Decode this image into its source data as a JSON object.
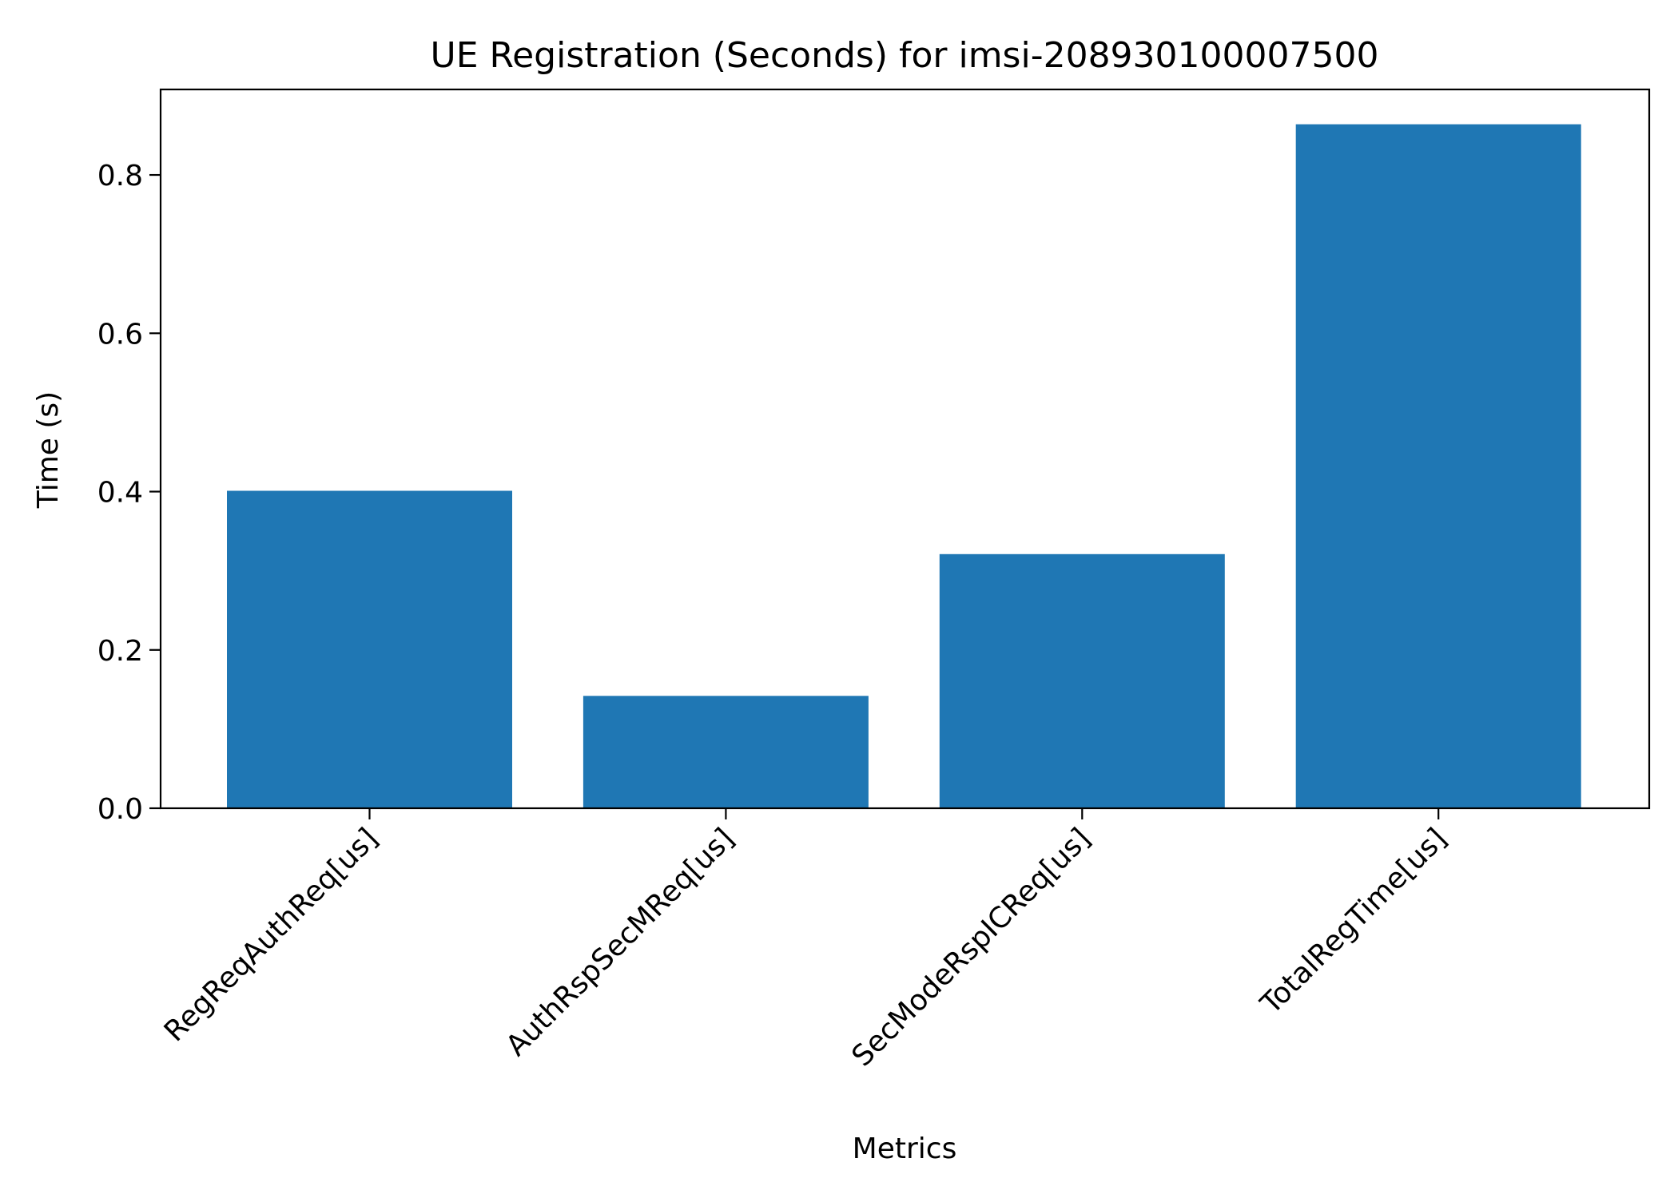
{
  "chart_data": {
    "type": "bar",
    "title": "UE Registration (Seconds) for imsi-208930100007500",
    "xlabel": "Metrics",
    "ylabel": "Time (s)",
    "categories": [
      "RegReqAuthReq[us]",
      "AuthRspSecMReq[us]",
      "SecModeRspICReq[us]",
      "TotalRegTime[us]"
    ],
    "values": [
      0.401,
      0.142,
      0.321,
      0.864
    ],
    "ylim": [
      0,
      0.908
    ],
    "yticks": [
      0.0,
      0.2,
      0.4,
      0.6,
      0.8
    ],
    "ytick_labels": [
      "0.0",
      "0.2",
      "0.4",
      "0.6",
      "0.8"
    ],
    "bar_color": "#1f77b4",
    "grid": false,
    "legend": "none"
  }
}
